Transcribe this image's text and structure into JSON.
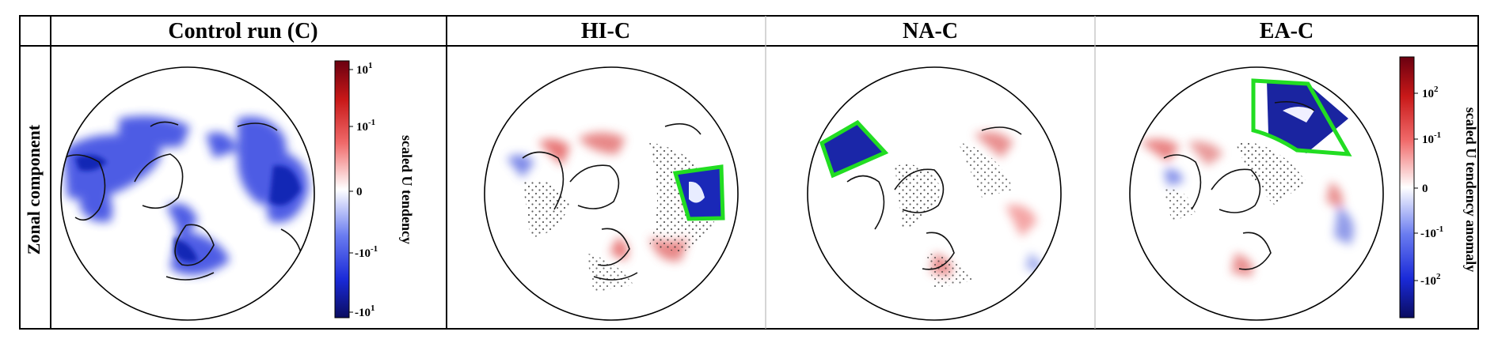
{
  "headers": {
    "col1": "Control run (C)",
    "col2": "HI-C",
    "col3": "NA-C",
    "col4": "EA-C"
  },
  "row_label": "Zonal component",
  "colorbar_left": {
    "label": "scaled U tendency",
    "ticks": [
      {
        "base": "10",
        "sup": "1"
      },
      {
        "base": "10",
        "sup": "-1"
      },
      {
        "base": "0",
        "sup": ""
      },
      {
        "base": "-10",
        "sup": "-1"
      },
      {
        "base": "-10",
        "sup": "1"
      }
    ]
  },
  "colorbar_right": {
    "label": "scaled U tendency anomaly",
    "ticks": [
      {
        "base": "10",
        "sup": "2"
      },
      {
        "base": "10",
        "sup": "-1"
      },
      {
        "base": "0",
        "sup": ""
      },
      {
        "base": "-10",
        "sup": "-1"
      },
      {
        "base": "-10",
        "sup": "2"
      }
    ]
  },
  "colors": {
    "box_highlight": "#22dd22",
    "negative_strong": "#0a1a8a",
    "negative": "#2a3ee0",
    "positive": "#e03030",
    "positive_strong": "#7a0010"
  }
}
